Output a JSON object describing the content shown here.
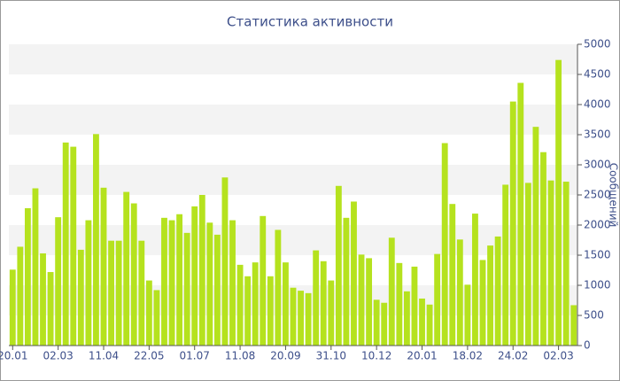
{
  "chart_data": {
    "type": "bar",
    "title": "Статистика активности",
    "y_label": "Сообщений",
    "y_axis_side": "right",
    "grid": true,
    "color": "#b5e21e",
    "categories": [
      "20.01",
      null,
      null,
      null,
      null,
      null,
      "02.03",
      null,
      null,
      null,
      null,
      null,
      "11.04",
      null,
      null,
      null,
      null,
      null,
      "22.05",
      null,
      null,
      null,
      null,
      null,
      "01.07",
      null,
      null,
      null,
      null,
      null,
      "11.08",
      null,
      null,
      null,
      null,
      null,
      "20.09",
      null,
      null,
      null,
      null,
      null,
      "31.10",
      null,
      null,
      null,
      null,
      null,
      "10.12",
      null,
      null,
      null,
      null,
      null,
      "20.01",
      null,
      null,
      null,
      null,
      null,
      "18.02",
      null,
      null,
      null,
      null,
      null,
      "24.02",
      null,
      null,
      null,
      null,
      null,
      "02.03",
      null,
      null
    ],
    "values": [
      1260,
      1640,
      2280,
      2610,
      1530,
      1220,
      2130,
      3370,
      3300,
      1590,
      2080,
      3510,
      2620,
      1740,
      1740,
      2550,
      2360,
      1740,
      1080,
      920,
      2120,
      2080,
      2180,
      1870,
      2310,
      2500,
      2040,
      1840,
      2790,
      2080,
      1340,
      1150,
      1380,
      2150,
      1150,
      1920,
      1380,
      960,
      910,
      870,
      1580,
      1400,
      1080,
      2650,
      2120,
      2390,
      1510,
      1450,
      760,
      710,
      1790,
      1370,
      900,
      1310,
      780,
      680,
      1520,
      3360,
      2350,
      1760,
      1010,
      2190,
      1420,
      1660,
      1810,
      2670,
      4050,
      4360,
      2700,
      3630,
      3210,
      2740,
      4740,
      2720,
      670
    ],
    "ylim": [
      0,
      5000
    ],
    "yticks": [
      0,
      500,
      1000,
      1500,
      2000,
      2500,
      3000,
      3500,
      4000,
      4500,
      5000
    ]
  }
}
